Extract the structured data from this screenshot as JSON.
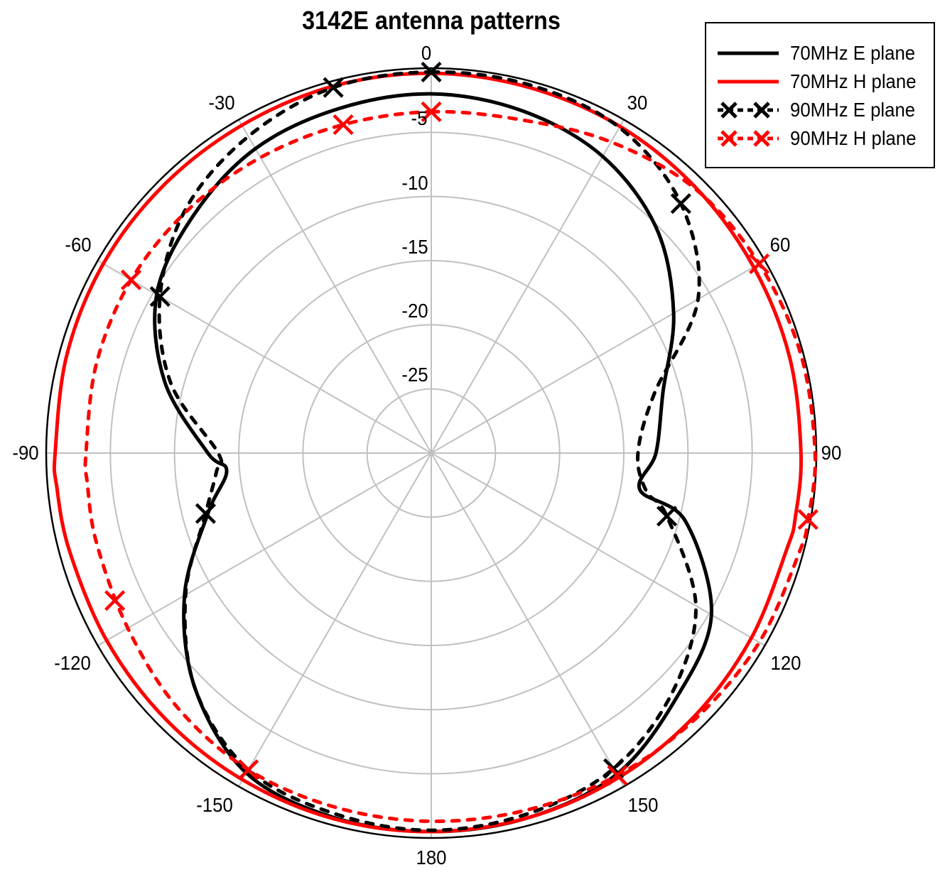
{
  "chart_data": {
    "type": "polar-line",
    "title": "3142E antenna patterns",
    "angle_unit": "degrees",
    "angle_zero": "top",
    "angle_direction": "clockwise",
    "angular_ticks": [
      0,
      30,
      60,
      90,
      120,
      150,
      180,
      -150,
      -120,
      -90,
      -60,
      -30
    ],
    "radial_ticks": [
      0,
      -5,
      -10,
      -15,
      -20,
      -25
    ],
    "rlim": [
      -30,
      0
    ],
    "radial_unit": "dB",
    "grid": true,
    "legend_position": "upper right",
    "angles": [
      0,
      15,
      30,
      45,
      60,
      75,
      90,
      100,
      105,
      120,
      135,
      150,
      165,
      180,
      -165,
      -150,
      -135,
      -120,
      -105,
      -95,
      -90,
      -75,
      -60,
      -45,
      -30,
      -15
    ],
    "series": [
      {
        "name": "70MHz E plane",
        "color": "#000000",
        "style": "solid",
        "markers": false,
        "values": [
          -2.0,
          -2.4,
          -3.3,
          -5.2,
          -8.2,
          -11.3,
          -12.5,
          -13.5,
          -9.5,
          -4.8,
          -3.0,
          -1.1,
          -0.6,
          -0.5,
          -0.6,
          -1.2,
          -4.0,
          -7.8,
          -12.0,
          -14.0,
          -12.6,
          -8.5,
          -5.3,
          -3.8,
          -2.6,
          -2.2
        ]
      },
      {
        "name": "70MHz H plane",
        "color": "#ff0000",
        "style": "solid",
        "markers": false,
        "values": [
          -0.4,
          -0.5,
          -0.6,
          -0.8,
          -1.0,
          -1.1,
          -1.2,
          -1.2,
          -1.3,
          -1.2,
          -1.0,
          -0.8,
          -0.6,
          -0.5,
          -0.5,
          -0.6,
          -0.7,
          -0.8,
          -0.8,
          -0.7,
          -0.7,
          -0.6,
          -0.5,
          -0.5,
          -0.5,
          -0.4
        ]
      },
      {
        "name": "90MHz E plane",
        "color": "#000000",
        "style": "dotted",
        "markers": true,
        "values": [
          -0.3,
          -0.3,
          -0.7,
          -2.5,
          -6.0,
          -12.0,
          -13.9,
          -13.0,
          -11.0,
          -6.2,
          -3.5,
          -1.6,
          -0.9,
          -0.6,
          -0.9,
          -1.5,
          -4.0,
          -7.9,
          -11.8,
          -13.2,
          -13.4,
          -9.0,
          -5.6,
          -3.0,
          -1.5,
          -0.5
        ]
      },
      {
        "name": "90MHz H plane",
        "color": "#ff0000",
        "style": "dotted",
        "markers": true,
        "values": [
          -3.4,
          -3.1,
          -2.0,
          -0.9,
          -0.5,
          -0.2,
          -0.1,
          -0.2,
          -0.3,
          -0.5,
          -0.8,
          -1.0,
          -1.2,
          -1.3,
          -1.4,
          -1.5,
          -2.0,
          -2.7,
          -3.0,
          -3.1,
          -3.1,
          -3.0,
          -3.0,
          -3.2,
          -3.4,
          -3.5
        ]
      }
    ],
    "marker_angles": {
      "90MHz E plane": [
        0,
        -15,
        45,
        105,
        150,
        -150,
        -105,
        -60
      ],
      "90MHz H plane": [
        0,
        -15,
        60,
        100,
        150,
        -150,
        -115,
        -60
      ]
    }
  },
  "legend": {
    "items": [
      {
        "label": "70MHz E plane"
      },
      {
        "label": "70MHz H plane"
      },
      {
        "label": "90MHz E plane"
      },
      {
        "label": "90MHz H plane"
      }
    ]
  },
  "ticks": {
    "angular": [
      "0",
      "30",
      "60",
      "90",
      "120",
      "150",
      "180",
      "-150",
      "-120",
      "-90",
      "-60",
      "-30"
    ],
    "radial": [
      "-5",
      "-10",
      "-15",
      "-20",
      "-25"
    ]
  }
}
